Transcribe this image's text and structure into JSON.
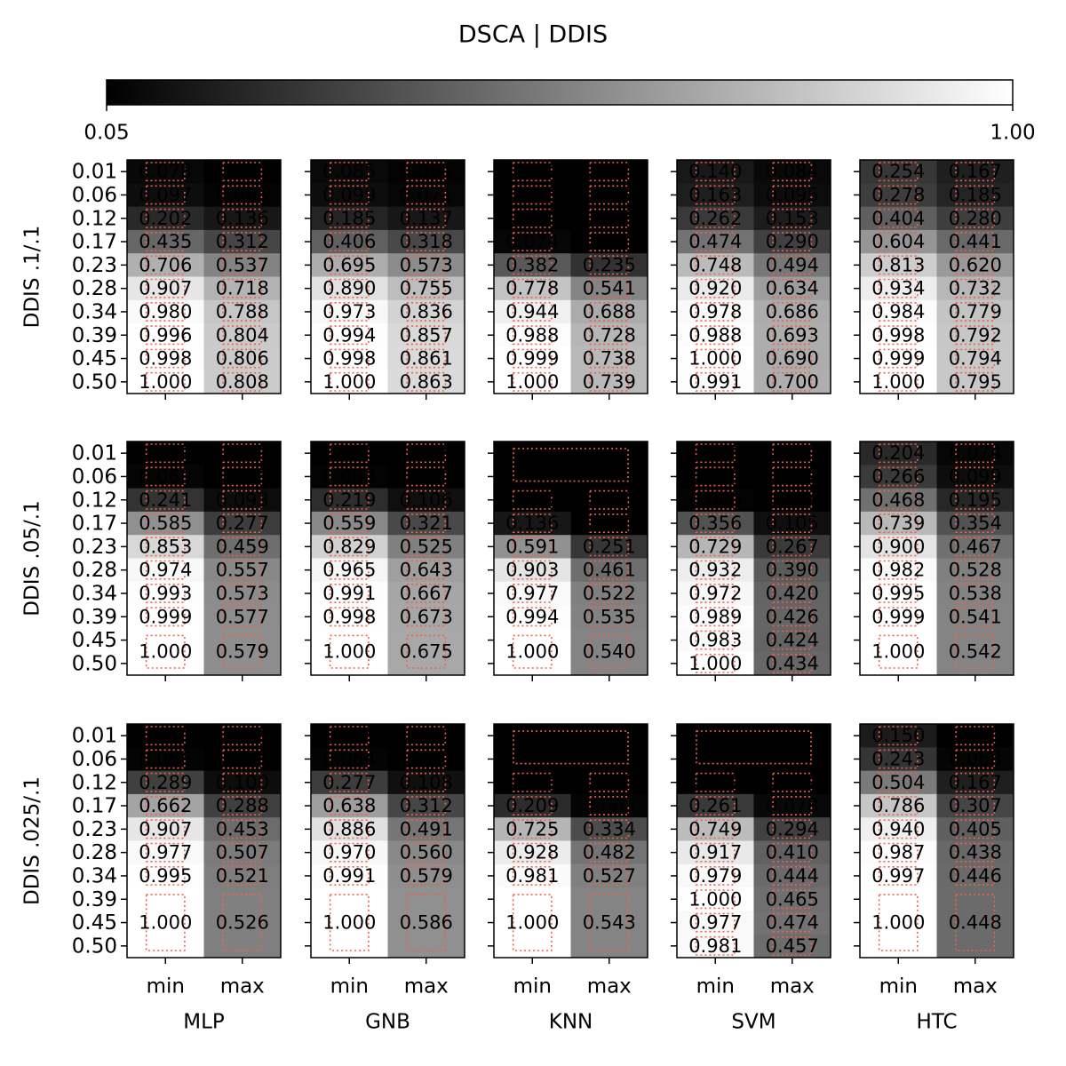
{
  "chart_data": {
    "type": "heatmap",
    "title": "DSCA | DDIS",
    "colorbar": {
      "lim": [
        0.05,
        1
      ],
      "ticks": [
        0.05,
        {
          "value": 1,
          "label": "1.00"
        }
      ],
      "colors": [
        "#000000",
        "#ffffff"
      ]
    },
    "x_categories": [
      "min",
      "max"
    ],
    "y_categories": [
      "0.01",
      "0.06",
      "0.12",
      "0.17",
      "0.23",
      "0.28",
      "0.34",
      "0.39",
      "0.45",
      "0.50"
    ],
    "row_labels": [
      "DDIS .1/.1",
      "DDIS .05/.1",
      "DDIS .025/.1"
    ],
    "column_labels": [
      "MLP",
      "GNB",
      "KNN",
      "SVM",
      "HTC"
    ],
    "annotation_color": "#f0604d",
    "panels": [
      [
        {
          "values": [
            [
              0.078,
              0.097,
              0.202,
              0.435,
              0.706,
              0.907,
              0.98,
              0.996,
              0.998,
              1
            ],
            [
              0.05,
              0.063,
              0.136,
              0.312,
              0.537,
              0.718,
              0.788,
              0.804,
              0.806,
              0.808
            ]
          ],
          "value_labels": [
            [
              "0.078",
              "0.097",
              "0.202",
              "0.435",
              "0.706",
              "0.907",
              "0.980",
              "0.996",
              "0.998",
              "1.000"
            ],
            [
              "0.050",
              "0.063",
              "0.136",
              "0.312",
              "0.537",
              "0.718",
              "0.788",
              "0.804",
              "0.806",
              "0.808"
            ]
          ]
        },
        {
          "values": [
            [
              0.085,
              0.099,
              0.185,
              0.406,
              0.695,
              0.89,
              0.973,
              0.994,
              0.998,
              1
            ],
            [
              0.061,
              0.071,
              0.137,
              0.318,
              0.573,
              0.755,
              0.836,
              0.857,
              0.861,
              0.863
            ]
          ],
          "value_labels": [
            [
              "0.085",
              "0.099",
              "0.185",
              "0.406",
              "0.695",
              "0.890",
              "0.973",
              "0.994",
              "0.998",
              "1.000"
            ],
            [
              "0.061",
              "0.071",
              "0.137",
              "0.318",
              "0.573",
              "0.755",
              "0.836",
              "0.857",
              "0.861",
              "0.863"
            ]
          ]
        },
        {
          "values": [
            [
              0.002,
              0.003,
              0.011,
              0.074,
              0.382,
              0.778,
              0.944,
              0.988,
              0.999,
              1
            ],
            [
              0.001,
              0.002,
              0.006,
              0.04,
              0.235,
              0.541,
              0.688,
              0.728,
              0.738,
              0.739
            ]
          ],
          "value_labels": [
            [
              "0.002",
              "0.003",
              "0.011",
              "0.074",
              "0.382",
              "0.778",
              "0.944",
              "0.988",
              "0.999",
              "1.000"
            ],
            [
              "0.001",
              "0.002",
              "0.006",
              "0.040",
              "0.235",
              "0.541",
              "0.688",
              "0.728",
              "0.738",
              "0.739"
            ]
          ]
        },
        {
          "values": [
            [
              0.14,
              0.163,
              0.262,
              0.474,
              0.748,
              0.92,
              0.978,
              0.988,
              1,
              0.991
            ],
            [
              0.084,
              0.095,
              0.153,
              0.29,
              0.494,
              0.634,
              0.686,
              0.693,
              0.69,
              0.7
            ]
          ],
          "value_labels": [
            [
              "0.140",
              "0.163",
              "0.262",
              "0.474",
              "0.748",
              "0.920",
              "0.978",
              "0.988",
              "1.000",
              "0.991"
            ],
            [
              "0.084",
              "0.095",
              "0.153",
              "0.290",
              "0.494",
              "0.634",
              "0.686",
              "0.693",
              "0.690",
              "0.700"
            ]
          ]
        },
        {
          "values": [
            [
              0.254,
              0.278,
              0.404,
              0.604,
              0.813,
              0.934,
              0.984,
              0.998,
              0.999,
              1
            ],
            [
              0.167,
              0.185,
              0.28,
              0.441,
              0.62,
              0.732,
              0.779,
              0.792,
              0.794,
              0.795
            ]
          ],
          "value_labels": [
            [
              "0.254",
              "0.278",
              "0.404",
              "0.604",
              "0.813",
              "0.934",
              "0.984",
              "0.998",
              "0.999",
              "1.000"
            ],
            [
              "0.167",
              "0.185",
              "0.280",
              "0.441",
              "0.620",
              "0.732",
              "0.779",
              "0.792",
              "0.794",
              "0.795"
            ]
          ]
        }
      ],
      [
        {
          "values": [
            [
              0.032,
              0.069,
              0.241,
              0.585,
              0.853,
              0.974,
              0.993,
              0.999,
              1,
              1
            ],
            [
              0.01,
              0.023,
              0.093,
              0.277,
              0.459,
              0.557,
              0.573,
              0.577,
              0.579,
              0.579
            ]
          ],
          "value_labels": [
            [
              "0.032",
              "0.069",
              "0.241",
              "0.585",
              "0.853",
              "0.974",
              "0.993",
              "0.999",
              "1.000",
              null
            ],
            [
              "0.010",
              "0.023",
              "0.093",
              "0.277",
              "0.459",
              "0.557",
              "0.573",
              "0.577",
              "0.579",
              null
            ]
          ]
        },
        {
          "values": [
            [
              0.04,
              0.063,
              0.219,
              0.559,
              0.829,
              0.965,
              0.991,
              0.998,
              1,
              1
            ],
            [
              0.016,
              0.027,
              0.106,
              0.321,
              0.525,
              0.643,
              0.667,
              0.673,
              0.675,
              0.675
            ]
          ],
          "value_labels": [
            [
              "0.040",
              "0.063",
              "0.219",
              "0.559",
              "0.829",
              "0.965",
              "0.991",
              "0.998",
              "1.000",
              null
            ],
            [
              "0.016",
              "0.027",
              "0.106",
              "0.321",
              "0.525",
              "0.643",
              "0.667",
              "0.673",
              "0.675",
              null
            ]
          ]
        },
        {
          "values": [
            [
              0,
              0,
              0.002,
              0.136,
              0.591,
              0.903,
              0.977,
              0.994,
              1,
              1
            ],
            [
              0,
              0,
              0.001,
              0.04,
              0.251,
              0.461,
              0.522,
              0.535,
              0.54,
              0.54
            ]
          ],
          "value_labels": [
            [
              "0.000",
              null,
              "0.002",
              "0.136",
              "0.591",
              "0.903",
              "0.977",
              "0.994",
              "1.000",
              null
            ],
            [
              null,
              null,
              "0.001",
              "0.040",
              "0.251",
              "0.461",
              "0.522",
              "0.535",
              "0.540",
              null
            ]
          ]
        },
        {
          "values": [
            [
              0.003,
              0.009,
              0.06,
              0.356,
              0.729,
              0.932,
              0.972,
              0.989,
              0.983,
              1
            ],
            [
              0.001,
              0.002,
              0.014,
              0.105,
              0.267,
              0.39,
              0.42,
              0.426,
              0.424,
              0.434
            ]
          ],
          "value_labels": [
            [
              "0.003",
              "0.009",
              "0.060",
              "0.356",
              "0.729",
              "0.932",
              "0.972",
              "0.989",
              "0.983",
              "1.000"
            ],
            [
              "0.001",
              "0.002",
              "0.014",
              "0.105",
              "0.267",
              "0.390",
              "0.420",
              "0.426",
              "0.424",
              "0.434"
            ]
          ]
        },
        {
          "values": [
            [
              0.204,
              0.266,
              0.468,
              0.739,
              0.9,
              0.982,
              0.995,
              0.999,
              1,
              1
            ],
            [
              0.074,
              0.099,
              0.195,
              0.354,
              0.467,
              0.528,
              0.538,
              0.541,
              0.542,
              0.542
            ]
          ],
          "value_labels": [
            [
              "0.204",
              "0.266",
              "0.468",
              "0.739",
              "0.900",
              "0.982",
              "0.995",
              "0.999",
              "1.000",
              null
            ],
            [
              "0.074",
              "0.099",
              "0.195",
              "0.354",
              "0.467",
              "0.528",
              "0.538",
              "0.541",
              "0.542",
              null
            ]
          ]
        }
      ],
      [
        {
          "values": [
            [
              0.02,
              0.066,
              0.289,
              0.662,
              0.907,
              0.977,
              0.995,
              1,
              1,
              1
            ],
            [
              0.005,
              0.018,
              0.1,
              0.288,
              0.453,
              0.507,
              0.521,
              0.526,
              0.526,
              0.526
            ]
          ],
          "value_labels": [
            [
              "0.020",
              "0.066",
              "0.289",
              "0.662",
              "0.907",
              "0.977",
              "0.995",
              "1.000",
              null,
              null
            ],
            [
              "0.005",
              "0.018",
              "0.100",
              "0.288",
              "0.453",
              "0.507",
              "0.521",
              "0.526",
              null,
              null
            ]
          ]
        },
        {
          "values": [
            [
              0.026,
              0.064,
              0.277,
              0.638,
              0.886,
              0.97,
              0.991,
              1,
              1,
              1
            ],
            [
              0.007,
              0.019,
              0.108,
              0.312,
              0.491,
              0.56,
              0.579,
              0.586,
              0.586,
              0.586
            ]
          ],
          "value_labels": [
            [
              "0.026",
              "0.064",
              "0.277",
              "0.638",
              "0.886",
              "0.970",
              "0.991",
              "1.000",
              null,
              null
            ],
            [
              "0.007",
              "0.019",
              "0.108",
              "0.312",
              "0.491",
              "0.560",
              "0.579",
              "0.586",
              null,
              null
            ]
          ]
        },
        {
          "values": [
            [
              0,
              0,
              0.003,
              0.209,
              0.725,
              0.928,
              0.981,
              1,
              1,
              1
            ],
            [
              0,
              0,
              0.001,
              0.065,
              0.334,
              0.482,
              0.527,
              0.543,
              0.543,
              0.543
            ]
          ],
          "value_labels": [
            [
              "0.000",
              null,
              "0.003",
              "0.209",
              "0.725",
              "0.928",
              "0.981",
              "1.000",
              null,
              null
            ],
            [
              null,
              null,
              "0.001",
              "0.065",
              "0.334",
              "0.482",
              "0.527",
              "0.543",
              null,
              null
            ]
          ]
        },
        {
          "values": [
            [
              0,
              0,
              0.012,
              0.261,
              0.749,
              0.917,
              0.979,
              1,
              0.977,
              0.981
            ],
            [
              0,
              0,
              0.002,
              0.078,
              0.294,
              0.41,
              0.444,
              0.465,
              0.474,
              0.457
            ]
          ],
          "value_labels": [
            [
              "0.000",
              null,
              "0.012",
              "0.261",
              "0.749",
              "0.917",
              "0.979",
              "1.000",
              "0.977",
              "0.981"
            ],
            [
              null,
              null,
              "0.002",
              "0.078",
              "0.294",
              "0.410",
              "0.444",
              "0.465",
              "0.474",
              "0.457"
            ]
          ]
        },
        {
          "values": [
            [
              0.15,
              0.243,
              0.504,
              0.786,
              0.94,
              0.987,
              0.997,
              1,
              1,
              1
            ],
            [
              0.039,
              0.068,
              0.167,
              0.307,
              0.405,
              0.438,
              0.446,
              0.448,
              0.448,
              0.448
            ]
          ],
          "value_labels": [
            [
              "0.150",
              "0.243",
              "0.504",
              "0.786",
              "0.940",
              "0.987",
              "0.997",
              "1.000",
              null,
              null
            ],
            [
              "0.039",
              "0.068",
              "0.167",
              "0.307",
              "0.405",
              "0.438",
              "0.446",
              "0.448",
              null,
              null
            ]
          ]
        }
      ]
    ]
  }
}
